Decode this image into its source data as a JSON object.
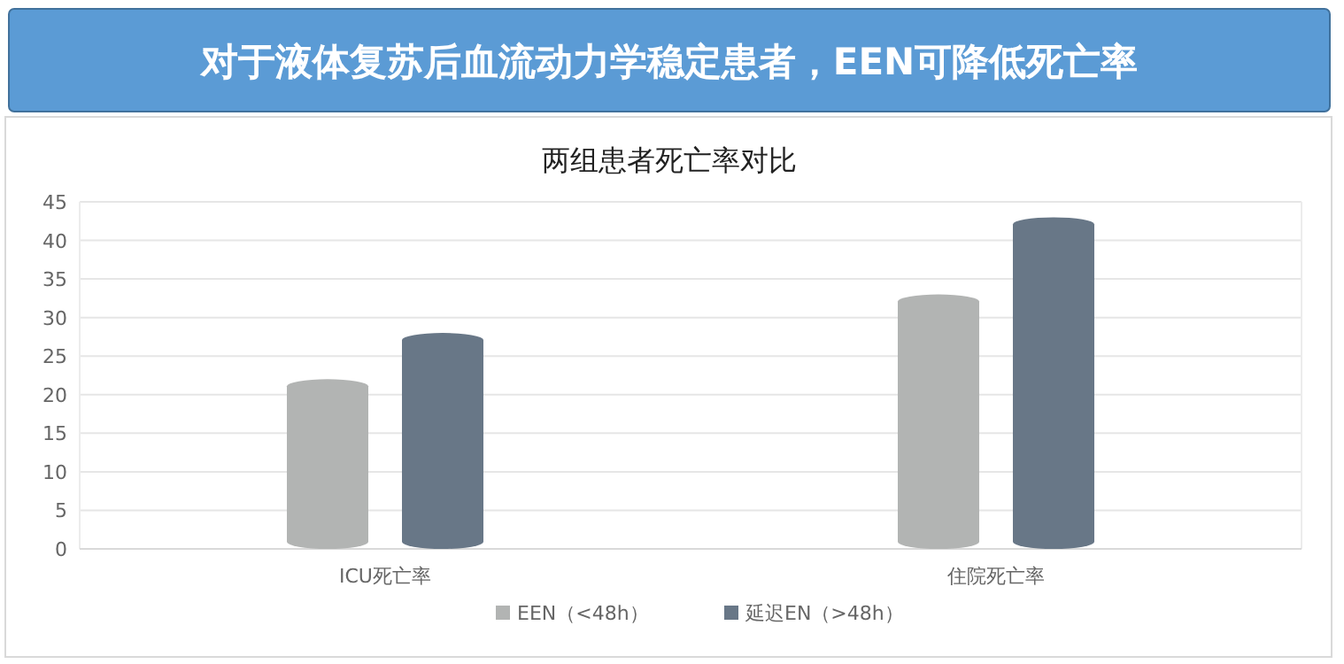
{
  "chart_data": {
    "type": "bar",
    "title": "对于液体复苏后血流动力学稳定患者，EEN可降低死亡率",
    "subtitle": "两组患者死亡率对比",
    "categories": [
      "ICU死亡率",
      "住院死亡率"
    ],
    "series": [
      {
        "name": "EEN（<48h）",
        "color": "#b2b4b3",
        "values": [
          22,
          33
        ]
      },
      {
        "name": "延迟EN（>48h）",
        "color": "#687787",
        "values": [
          28,
          43
        ]
      }
    ],
    "ylim": [
      0,
      45
    ],
    "yticks": [
      0,
      5,
      10,
      15,
      20,
      25,
      30,
      35,
      40,
      45
    ],
    "grid": true,
    "legend": "bottom"
  }
}
